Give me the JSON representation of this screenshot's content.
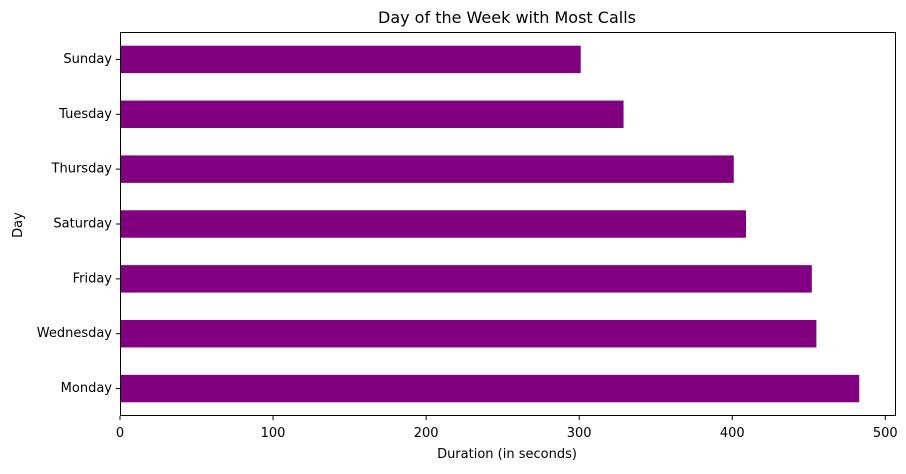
{
  "chart_data": {
    "type": "bar",
    "orientation": "horizontal",
    "title": "Day of the Week with Most Calls",
    "xlabel": "Duration (in seconds)",
    "ylabel": "Day",
    "categories": [
      "Monday",
      "Wednesday",
      "Friday",
      "Saturday",
      "Thursday",
      "Tuesday",
      "Sunday"
    ],
    "values": [
      483,
      455,
      452,
      409,
      401,
      329,
      301
    ],
    "xlim": [
      0,
      507
    ],
    "xticks": [
      0,
      100,
      200,
      300,
      400,
      500
    ],
    "grid": false,
    "bar_color": "#800080"
  }
}
